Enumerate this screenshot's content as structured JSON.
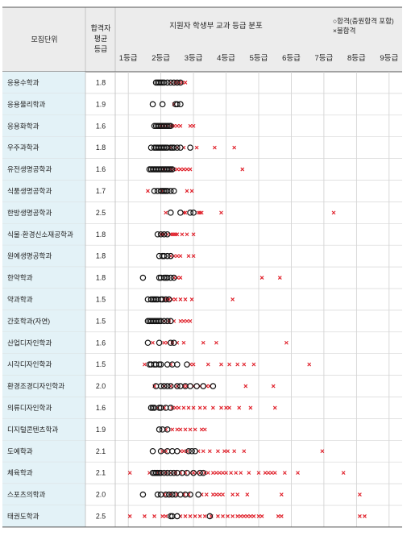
{
  "chart_data": {
    "type": "scatter",
    "title": "지원자 학생부 교과 등급 분포",
    "header": {
      "unit_col": "모집단위",
      "avg_col": [
        "합격자",
        "평균",
        "등급"
      ]
    },
    "legend": {
      "pass": "○합격(충원합격 포함)",
      "fail": "×불합격",
      "position": "top-right"
    },
    "x_ticks": [
      "1등급",
      "2등급",
      "3등급",
      "4등급",
      "5등급",
      "6등급",
      "7등급",
      "8등급",
      "9등급"
    ],
    "xlim": [
      0.6,
      9.4
    ],
    "colors": {
      "pass": "#111111",
      "fail": "#e0202a",
      "label_bg": "#e3f2f7",
      "grid": "#cfcfcf",
      "header_bg": "#ececec"
    },
    "rows": [
      {
        "unit": "응용수학과",
        "avg": "1.8",
        "pass": [
          1.85,
          1.9,
          1.95,
          2.0,
          2.05,
          2.1,
          2.2,
          2.3,
          2.4,
          2.5,
          2.6
        ],
        "fail": [
          2.3,
          2.45,
          2.55,
          2.65,
          2.75
        ]
      },
      {
        "unit": "응용물리학과",
        "avg": "1.9",
        "pass": [
          1.75,
          2.05,
          2.45,
          2.5,
          2.6
        ],
        "fail": [
          2.4
        ]
      },
      {
        "unit": "응용화학과",
        "avg": "1.6",
        "pass": [
          1.8,
          1.85,
          1.9,
          1.95,
          2.0,
          2.05,
          2.1,
          2.15,
          2.2,
          2.25,
          2.3
        ],
        "fail": [
          2.0,
          2.1,
          2.2,
          2.3,
          2.35,
          2.4,
          2.5,
          2.6,
          2.9,
          3.0
        ]
      },
      {
        "unit": "우주과학과",
        "avg": "1.8",
        "pass": [
          1.7,
          1.8,
          1.85,
          1.9,
          1.95,
          2.0,
          2.05,
          2.1,
          2.15,
          2.2,
          2.3,
          2.35,
          2.4,
          2.5,
          2.6,
          2.9
        ],
        "fail": [
          2.3,
          2.5,
          2.7,
          3.1,
          3.65,
          4.25
        ]
      },
      {
        "unit": "유전생명공학과",
        "avg": "1.6",
        "pass": [
          1.65,
          1.7,
          1.75,
          1.8,
          1.85,
          1.9,
          1.95,
          2.0,
          2.05,
          2.1,
          2.15,
          2.2,
          2.25,
          2.3,
          2.35
        ],
        "fail": [
          2.1,
          2.3,
          2.4,
          2.5,
          2.6,
          2.7,
          2.8,
          2.9,
          4.5
        ]
      },
      {
        "unit": "식품생명공학과",
        "avg": "1.7",
        "pass": [
          1.8,
          1.9,
          2.0,
          2.05,
          2.1,
          2.15,
          2.2,
          2.3,
          2.4
        ],
        "fail": [
          1.6,
          2.05,
          2.8,
          2.95
        ]
      },
      {
        "unit": "한방생명공학과",
        "avg": "2.5",
        "pass": [
          2.3,
          2.6,
          2.9,
          3.0
        ],
        "fail": [
          2.15,
          2.7,
          2.75,
          3.15,
          3.2,
          3.25,
          3.85,
          7.3
        ]
      },
      {
        "unit": "식물·환경신소재공학과",
        "avg": "1.8",
        "pass": [
          1.9,
          2.0,
          2.1,
          2.2
        ],
        "fail": [
          2.0,
          2.05,
          2.1,
          2.2,
          2.3,
          2.35,
          2.4,
          2.45,
          2.5,
          2.65,
          2.8,
          3.0
        ]
      },
      {
        "unit": "원예생명공학과",
        "avg": "1.8",
        "pass": [
          1.95,
          2.05,
          2.1,
          2.2,
          2.3
        ],
        "fail": [
          2.3,
          2.4,
          2.5,
          2.6,
          2.85,
          3.0
        ]
      },
      {
        "unit": "한약학과",
        "avg": "1.8",
        "pass": [
          1.45,
          1.95,
          2.0,
          2.1,
          2.15,
          2.2,
          2.3,
          2.4
        ],
        "fail": [
          2.4,
          2.5,
          2.6,
          5.1,
          5.65
        ]
      },
      {
        "unit": "약과학과",
        "avg": "1.5",
        "pass": [
          1.6,
          1.7,
          1.75,
          1.8,
          1.85,
          1.9,
          2.0,
          2.05,
          2.15,
          2.25
        ],
        "fail": [
          2.1,
          2.2,
          2.25,
          2.35,
          2.45,
          2.6,
          2.75,
          2.95,
          4.2
        ]
      },
      {
        "unit": "간호학과(자연)",
        "avg": "1.5",
        "pass": [
          1.6,
          1.65,
          1.7,
          1.75,
          1.8,
          1.85,
          1.9,
          1.95,
          2.0,
          2.1,
          2.2,
          2.3
        ],
        "fail": [
          2.1,
          2.25,
          2.4,
          2.6,
          2.7,
          2.8,
          2.9
        ]
      },
      {
        "unit": "산업디자인학과",
        "avg": "1.6",
        "pass": [
          1.6,
          1.95,
          2.3,
          2.4
        ],
        "fail": [
          1.75,
          2.1,
          2.2,
          2.35,
          2.5,
          2.7,
          3.3,
          3.7,
          5.85
        ]
      },
      {
        "unit": "시각디자인학과",
        "avg": "1.5",
        "pass": [
          1.65,
          1.7,
          1.8,
          1.85,
          1.95,
          2.0,
          2.2,
          2.35,
          2.5,
          2.8
        ],
        "fail": [
          1.5,
          2.3,
          2.9,
          3.0,
          3.45,
          3.85,
          4.1,
          4.35,
          4.55,
          4.85,
          6.55
        ]
      },
      {
        "unit": "환경조경디자인학과",
        "avg": "2.0",
        "pass": [
          1.85,
          2.0,
          2.1,
          2.2,
          2.3,
          2.5,
          2.6,
          2.75,
          2.9,
          3.1,
          3.3,
          3.6
        ],
        "fail": [
          1.8,
          2.1,
          2.3,
          2.5,
          2.7,
          2.8,
          3.0,
          3.2,
          3.4,
          3.5,
          4.6,
          5.45
        ]
      },
      {
        "unit": "의류디자인학과",
        "avg": "1.6",
        "pass": [
          1.7,
          1.75,
          1.8,
          1.95,
          2.0,
          2.15,
          2.3
        ],
        "fail": [
          1.9,
          2.1,
          2.35,
          2.45,
          2.55,
          2.7,
          2.85,
          3.0,
          3.2,
          3.35,
          3.6,
          3.85,
          4.0,
          4.1,
          4.4,
          4.75,
          5.5
        ]
      },
      {
        "unit": "디지털콘텐츠학과",
        "avg": "1.9",
        "pass": [
          1.95,
          2.05,
          2.2
        ],
        "fail": [
          2.15,
          2.35,
          2.5,
          2.6,
          2.75,
          2.9,
          3.05,
          3.25,
          3.35
        ]
      },
      {
        "unit": "도예학과",
        "avg": "2.1",
        "pass": [
          1.75,
          2.0,
          2.2,
          2.35,
          2.5,
          2.85,
          2.95,
          3.05
        ],
        "fail": [
          2.05,
          2.15,
          2.6,
          2.7,
          2.8,
          3.15,
          3.3,
          3.5,
          3.75,
          3.95,
          4.05,
          4.25,
          4.55,
          6.95
        ]
      },
      {
        "unit": "체육학과",
        "avg": "2.1",
        "pass": [
          1.75,
          1.8,
          1.85,
          1.9,
          1.95,
          2.0,
          2.1,
          2.2,
          2.3,
          2.4,
          2.5,
          2.65,
          2.8,
          3.0,
          3.2,
          3.3
        ],
        "fail": [
          1.05,
          1.65,
          1.9,
          2.0,
          2.15,
          2.3,
          2.45,
          2.6,
          2.75,
          2.9,
          3.0,
          3.1,
          3.2,
          3.35,
          3.45,
          3.6,
          3.7,
          3.8,
          3.9,
          4.0,
          4.15,
          4.3,
          4.45,
          4.7,
          5.0,
          5.2,
          5.3,
          5.4,
          5.5,
          5.8,
          6.2,
          7.6
        ]
      },
      {
        "unit": "스포츠의학과",
        "avg": "2.0",
        "pass": [
          1.45,
          1.9,
          2.0,
          2.15,
          2.25,
          2.35,
          2.45,
          2.6,
          2.75,
          2.9,
          3.15
        ],
        "fail": [
          2.1,
          2.3,
          2.5,
          2.7,
          2.85,
          3.25,
          3.4,
          3.6,
          3.7,
          3.8,
          3.9,
          4.2,
          4.35,
          4.65,
          5.7,
          8.1
        ]
      },
      {
        "unit": "태권도학과",
        "avg": "2.5",
        "pass": [
          2.3,
          2.35,
          2.5,
          3.5
        ],
        "fail": [
          1.05,
          1.5,
          1.8,
          2.05,
          2.15,
          2.6,
          2.75,
          2.9,
          3.05,
          3.2,
          3.35,
          3.55,
          3.75,
          3.9,
          4.05,
          4.2,
          4.35,
          4.45,
          4.55,
          4.65,
          4.75,
          4.85,
          5.0,
          5.1,
          5.6,
          5.7,
          8.1,
          8.25
        ]
      }
    ]
  }
}
